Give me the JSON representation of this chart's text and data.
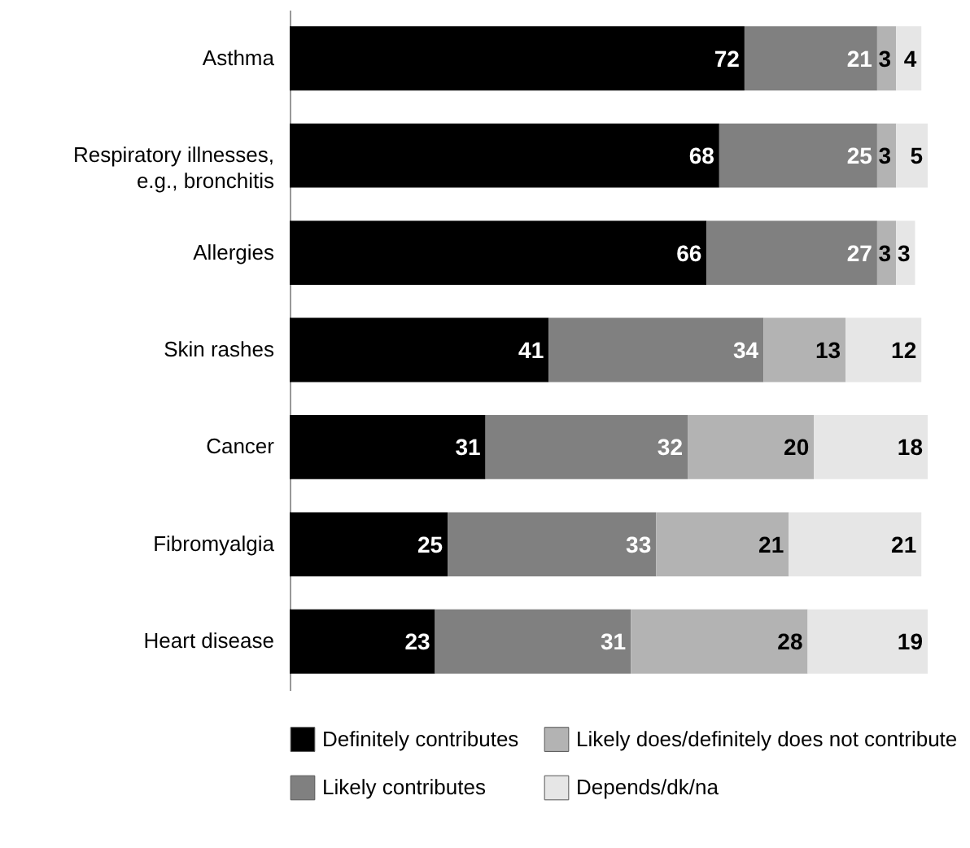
{
  "chart_data": {
    "type": "bar",
    "orientation": "horizontal",
    "stacked": true,
    "data_labels": true,
    "legend": "bottom",
    "categories": [
      "Asthma",
      "Respiratory illnesses,\ne.g., bronchitis",
      "Allergies",
      "Skin rashes",
      "Cancer",
      "Fibromyalgia",
      "Heart disease"
    ],
    "series": [
      {
        "name": "Definitely contributes",
        "color": "#000000",
        "values": [
          72,
          68,
          66,
          41,
          31,
          25,
          23
        ]
      },
      {
        "name": "Likely contributes",
        "color": "#808080",
        "values": [
          21,
          25,
          27,
          34,
          32,
          33,
          31
        ]
      },
      {
        "name": "Likely does/definitely does not contribute",
        "color": "#b3b3b3",
        "values": [
          3,
          3,
          3,
          13,
          20,
          21,
          28
        ]
      },
      {
        "name": "Depends/dk/na",
        "color": "#e6e6e6",
        "values": [
          4,
          5,
          3,
          12,
          18,
          21,
          19
        ]
      }
    ]
  }
}
